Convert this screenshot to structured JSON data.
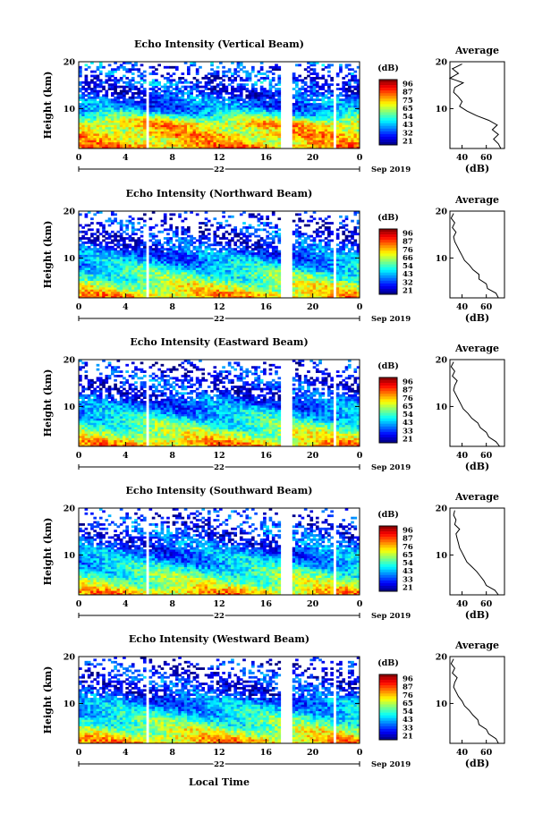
{
  "figure": {
    "xlabel": "Local Time",
    "date_label": "Sep 2019",
    "day_label": "22",
    "ylabel": "Height (km)",
    "avg_title": "Average",
    "avg_xlabel": "(dB)",
    "cbar_unit": "(dB)"
  },
  "chart_data": [
    {
      "type": "heatmap",
      "title": "Echo Intensity (Vertical Beam)",
      "xlabel": "Local Time",
      "ylabel": "Height (km)",
      "x_ticks": [
        "0",
        "4",
        "8",
        "12",
        "16",
        "20",
        "0"
      ],
      "xlim": [
        0,
        24
      ],
      "y_ticks": [
        "10",
        "20"
      ],
      "ylim": [
        1.5,
        20
      ],
      "colorbar": {
        "label": "(dB)",
        "ticks": [
          "96",
          "87",
          "75",
          "65",
          "54",
          "43",
          "32",
          "21"
        ],
        "range": [
          21,
          96
        ]
      },
      "data_gaps_hours": [
        [
          5.8,
          6.0
        ],
        [
          17.3,
          18.3
        ],
        [
          21.8,
          22.1
        ]
      ],
      "profile": {
        "title": "Average",
        "xlabel": "(dB)",
        "x_ticks": [
          "40",
          "60"
        ],
        "xlim": [
          30,
          75
        ],
        "height_km": [
          1.5,
          2.5,
          3.5,
          4.5,
          5.5,
          6.5,
          7.5,
          8.5,
          9.5,
          10.5,
          11.5,
          12.5,
          13.5,
          14.5,
          15.5,
          16.5,
          17.5,
          18.5,
          19.5
        ],
        "db": [
          72,
          70,
          66,
          70,
          65,
          69,
          62,
          52,
          44,
          38,
          40,
          37,
          33,
          34,
          41,
          30,
          37,
          32,
          40
        ]
      }
    },
    {
      "type": "heatmap",
      "title": "Echo Intensity (Northward Beam)",
      "xlabel": "Local Time",
      "ylabel": "Height (km)",
      "x_ticks": [
        "0",
        "4",
        "8",
        "12",
        "16",
        "20",
        "0"
      ],
      "xlim": [
        0,
        24
      ],
      "y_ticks": [
        "10",
        "20"
      ],
      "ylim": [
        1.5,
        20
      ],
      "colorbar": {
        "label": "(dB)",
        "ticks": [
          "96",
          "87",
          "76",
          "66",
          "54",
          "43",
          "32",
          "21"
        ],
        "range": [
          21,
          96
        ]
      },
      "data_gaps_hours": [
        [
          5.8,
          6.0
        ],
        [
          17.3,
          18.3
        ],
        [
          21.8,
          22.1
        ]
      ],
      "profile": {
        "title": "Average",
        "xlabel": "(dB)",
        "x_ticks": [
          "40",
          "60"
        ],
        "xlim": [
          30,
          75
        ],
        "height_km": [
          1.5,
          2.5,
          3.5,
          4.5,
          5.5,
          6.5,
          7.5,
          8.5,
          9.5,
          10.5,
          11.5,
          12.5,
          13.5,
          14.5,
          15.5,
          16.5,
          17.5,
          18.5,
          19.5
        ],
        "db": [
          70,
          68,
          61,
          60,
          54,
          54,
          49,
          46,
          42,
          40,
          38,
          36,
          34,
          33,
          35,
          32,
          34,
          31,
          33
        ]
      }
    },
    {
      "type": "heatmap",
      "title": "Echo Intensity (Eastward Beam)",
      "xlabel": "Local Time",
      "ylabel": "Height (km)",
      "x_ticks": [
        "0",
        "4",
        "8",
        "12",
        "16",
        "20",
        "0"
      ],
      "xlim": [
        0,
        24
      ],
      "y_ticks": [
        "10",
        "20"
      ],
      "ylim": [
        1.5,
        20
      ],
      "colorbar": {
        "label": "(dB)",
        "ticks": [
          "96",
          "87",
          "76",
          "65",
          "54",
          "43",
          "33",
          "21"
        ],
        "range": [
          21,
          96
        ]
      },
      "data_gaps_hours": [
        [
          5.8,
          6.0
        ],
        [
          17.3,
          18.3
        ],
        [
          21.8,
          22.1
        ]
      ],
      "profile": {
        "title": "Average",
        "xlabel": "(dB)",
        "x_ticks": [
          "40",
          "60"
        ],
        "xlim": [
          30,
          75
        ],
        "height_km": [
          1.5,
          2.5,
          3.5,
          4.5,
          5.5,
          6.5,
          7.5,
          8.5,
          9.5,
          10.5,
          11.5,
          12.5,
          13.5,
          14.5,
          15.5,
          16.5,
          17.5,
          18.5,
          19.5
        ],
        "db": [
          71,
          68,
          62,
          60,
          55,
          53,
          48,
          45,
          41,
          39,
          37,
          35,
          33,
          34,
          36,
          32,
          34,
          31,
          33
        ]
      }
    },
    {
      "type": "heatmap",
      "title": "Echo Intensity (Southward Beam)",
      "xlabel": "Local Time",
      "ylabel": "Height (km)",
      "x_ticks": [
        "0",
        "4",
        "8",
        "12",
        "16",
        "20",
        "0"
      ],
      "xlim": [
        0,
        24
      ],
      "y_ticks": [
        "10",
        "20"
      ],
      "ylim": [
        1.5,
        20
      ],
      "colorbar": {
        "label": "(dB)",
        "ticks": [
          "96",
          "87",
          "76",
          "65",
          "54",
          "43",
          "33",
          "21"
        ],
        "range": [
          21,
          96
        ]
      },
      "data_gaps_hours": [
        [
          5.8,
          6.0
        ],
        [
          17.3,
          18.3
        ],
        [
          21.8,
          22.1
        ]
      ],
      "profile": {
        "title": "Average",
        "xlabel": "(dB)",
        "x_ticks": [
          "40",
          "60"
        ],
        "xlim": [
          30,
          75
        ],
        "height_km": [
          1.5,
          2.5,
          3.5,
          4.5,
          5.5,
          6.5,
          7.5,
          8.5,
          9.5,
          10.5,
          11.5,
          12.5,
          13.5,
          14.5,
          15.5,
          16.5,
          17.5,
          18.5,
          19.5
        ],
        "db": [
          70,
          67,
          60,
          58,
          55,
          52,
          48,
          44,
          42,
          40,
          38,
          37,
          36,
          35,
          38,
          34,
          35,
          33,
          34
        ]
      }
    },
    {
      "type": "heatmap",
      "title": "Echo Intensity (Westward Beam)",
      "xlabel": "Local Time",
      "ylabel": "Height (km)",
      "x_ticks": [
        "0",
        "4",
        "8",
        "12",
        "16",
        "20",
        "0"
      ],
      "xlim": [
        0,
        24
      ],
      "y_ticks": [
        "10",
        "20"
      ],
      "ylim": [
        1.5,
        20
      ],
      "colorbar": {
        "label": "(dB)",
        "ticks": [
          "96",
          "87",
          "76",
          "65",
          "54",
          "43",
          "33",
          "21"
        ],
        "range": [
          21,
          96
        ]
      },
      "data_gaps_hours": [
        [
          5.8,
          6.0
        ],
        [
          17.3,
          18.3
        ],
        [
          21.8,
          22.1
        ]
      ],
      "profile": {
        "title": "Average",
        "xlabel": "(dB)",
        "x_ticks": [
          "40",
          "60"
        ],
        "xlim": [
          30,
          75
        ],
        "height_km": [
          1.5,
          2.5,
          3.5,
          4.5,
          5.5,
          6.5,
          7.5,
          8.5,
          9.5,
          10.5,
          11.5,
          12.5,
          13.5,
          14.5,
          15.5,
          16.5,
          17.5,
          18.5,
          19.5
        ],
        "db": [
          70,
          68,
          62,
          60,
          54,
          53,
          49,
          46,
          42,
          40,
          37,
          35,
          33,
          34,
          36,
          32,
          34,
          31,
          33
        ]
      }
    }
  ]
}
